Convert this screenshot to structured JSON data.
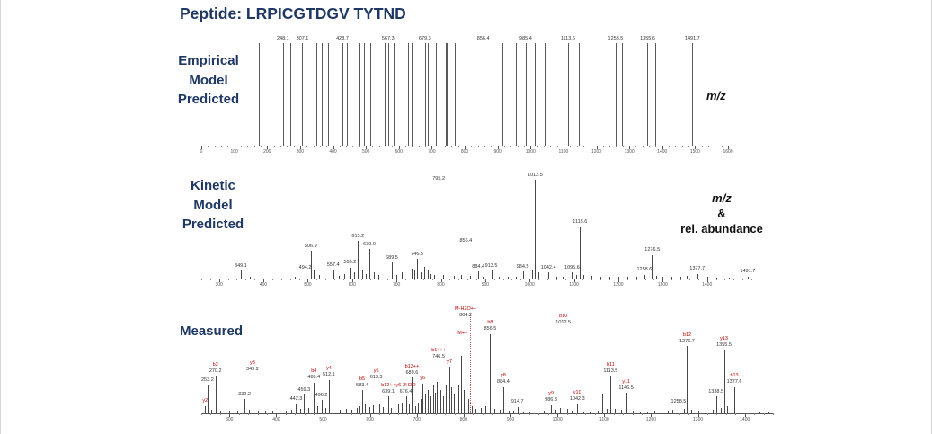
{
  "title": "Peptide: LRPICGTDGV TYTND",
  "colors": {
    "navy": "#1f3864",
    "stick": "#474747",
    "ion_red": "#c00000",
    "axis": "#555555"
  },
  "panels": [
    {
      "name": "empirical",
      "label_lines": [
        "Empirical",
        "Model",
        "Predicted"
      ],
      "annotation_lines": [
        "m/z"
      ]
    },
    {
      "name": "kinetic",
      "label_lines": [
        "Kinetic",
        "Model",
        "Predicted"
      ],
      "annotation_lines": [
        "m/z",
        "&",
        "rel. abundance"
      ]
    },
    {
      "name": "measured",
      "label_lines": [
        "Measured"
      ],
      "annotation_lines": []
    }
  ],
  "chart_data": [
    {
      "type": "bar",
      "subtype": "stick-spectrum",
      "title": "Empirical Model Predicted",
      "xlabel": "m/z",
      "ylabel": "",
      "xlim": [
        0,
        1600
      ],
      "ticks": [
        0,
        100,
        200,
        300,
        400,
        500,
        600,
        700,
        800,
        900,
        1000,
        1100,
        1200,
        1300,
        1400,
        1500,
        1600
      ],
      "uniform_intensity": 100,
      "peak_format": [
        "mz",
        "label"
      ],
      "peaks": [
        [
          175.1,
          ""
        ],
        [
          248.1,
          "248.1"
        ],
        [
          270.2,
          ""
        ],
        [
          307.1,
          "307.1"
        ],
        [
          349.2,
          ""
        ],
        [
          367.2,
          ""
        ],
        [
          385.2,
          ""
        ],
        [
          428.7,
          "428.7"
        ],
        [
          442.7,
          ""
        ],
        [
          480.3,
          ""
        ],
        [
          493.2,
          ""
        ],
        [
          512.2,
          ""
        ],
        [
          557.3,
          ""
        ],
        [
          567.3,
          "567.3"
        ],
        [
          583.3,
          ""
        ],
        [
          613.3,
          ""
        ],
        [
          628.8,
          ""
        ],
        [
          639.1,
          ""
        ],
        [
          679.3,
          "679.3"
        ],
        [
          689.3,
          ""
        ],
        [
          712.4,
          ""
        ],
        [
          741.4,
          ""
        ],
        [
          746.4,
          ""
        ],
        [
          769.3,
          ""
        ],
        [
          856.4,
          "856.4"
        ],
        [
          884.4,
          ""
        ],
        [
          913.5,
          ""
        ],
        [
          955.5,
          ""
        ],
        [
          985.4,
          "985.4"
        ],
        [
          1012.5,
          ""
        ],
        [
          1042.4,
          ""
        ],
        [
          1113.6,
          "1113.6"
        ],
        [
          1145.5,
          ""
        ],
        [
          1258.5,
          "1258.5"
        ],
        [
          1276.6,
          ""
        ],
        [
          1355.6,
          "1355.6"
        ],
        [
          1377.7,
          ""
        ],
        [
          1491.7,
          "1491.7"
        ]
      ]
    },
    {
      "type": "bar",
      "subtype": "stick-spectrum",
      "title": "Kinetic Model Predicted",
      "xlabel": "m/z",
      "ylabel": "rel. abundance",
      "xlim": [
        250,
        1510
      ],
      "ticks": [
        300,
        400,
        500,
        600,
        700,
        800,
        900,
        1000,
        1100,
        1200,
        1300,
        1400
      ],
      "peak_format": [
        "mz",
        "rel_intensity",
        "label"
      ],
      "peaks": [
        [
          349.1,
          8,
          "349.1"
        ],
        [
          370,
          2,
          ""
        ],
        [
          455,
          3,
          ""
        ],
        [
          470,
          2,
          ""
        ],
        [
          494.2,
          6,
          "494.2"
        ],
        [
          506.9,
          28,
          "506.9"
        ],
        [
          513,
          8,
          ""
        ],
        [
          525,
          4,
          ""
        ],
        [
          557.4,
          9,
          "557.4"
        ],
        [
          570,
          3,
          ""
        ],
        [
          583,
          5,
          ""
        ],
        [
          595.2,
          11,
          "595.2"
        ],
        [
          605,
          6,
          ""
        ],
        [
          613.2,
          38,
          "613.2"
        ],
        [
          622,
          8,
          ""
        ],
        [
          630,
          5,
          ""
        ],
        [
          639.0,
          30,
          "639.0"
        ],
        [
          650,
          6,
          ""
        ],
        [
          660,
          4,
          ""
        ],
        [
          676,
          5,
          ""
        ],
        [
          689.5,
          16,
          "689.5"
        ],
        [
          700,
          4,
          ""
        ],
        [
          712,
          6,
          ""
        ],
        [
          735,
          10,
          ""
        ],
        [
          741,
          8,
          ""
        ],
        [
          746.5,
          20,
          "746.5"
        ],
        [
          755,
          6,
          ""
        ],
        [
          762,
          12,
          ""
        ],
        [
          770,
          8,
          ""
        ],
        [
          777,
          5,
          ""
        ],
        [
          785,
          4,
          ""
        ],
        [
          795.2,
          96,
          "795.2"
        ],
        [
          805,
          4,
          ""
        ],
        [
          815,
          3,
          ""
        ],
        [
          830,
          3,
          ""
        ],
        [
          845,
          4,
          ""
        ],
        [
          856.4,
          33,
          "856.4"
        ],
        [
          865,
          3,
          ""
        ],
        [
          884.4,
          7,
          "884.4"
        ],
        [
          895,
          2,
          ""
        ],
        [
          913.5,
          8,
          "913.5"
        ],
        [
          930,
          2,
          ""
        ],
        [
          950,
          2,
          ""
        ],
        [
          970,
          2,
          ""
        ],
        [
          984.5,
          7,
          "984.5"
        ],
        [
          995,
          4,
          ""
        ],
        [
          1005,
          8,
          ""
        ],
        [
          1012.5,
          100,
          "1012.5"
        ],
        [
          1020,
          6,
          ""
        ],
        [
          1042.4,
          6,
          "1042.4"
        ],
        [
          1060,
          2,
          ""
        ],
        [
          1075,
          2,
          ""
        ],
        [
          1095.6,
          6,
          "1095.6"
        ],
        [
          1105,
          4,
          ""
        ],
        [
          1113.6,
          52,
          "1113.6"
        ],
        [
          1122,
          4,
          ""
        ],
        [
          1140,
          3,
          ""
        ],
        [
          1160,
          2,
          ""
        ],
        [
          1180,
          2,
          ""
        ],
        [
          1200,
          2,
          ""
        ],
        [
          1220,
          2,
          ""
        ],
        [
          1240,
          2,
          ""
        ],
        [
          1258.6,
          4,
          "1258.6"
        ],
        [
          1276.5,
          24,
          "1276.5"
        ],
        [
          1285,
          3,
          ""
        ],
        [
          1300,
          2,
          ""
        ],
        [
          1320,
          2,
          ""
        ],
        [
          1340,
          2,
          ""
        ],
        [
          1355,
          3,
          ""
        ],
        [
          1377.7,
          5,
          "1377.7"
        ],
        [
          1400,
          2,
          ""
        ],
        [
          1420,
          1,
          ""
        ],
        [
          1450,
          1,
          ""
        ],
        [
          1491.7,
          2,
          "1491.7"
        ]
      ]
    },
    {
      "type": "bar",
      "subtype": "stick-spectrum",
      "title": "Measured",
      "xlabel": "",
      "ylabel": "",
      "xlim": [
        240,
        1460
      ],
      "ticks": [
        300,
        400,
        500,
        600,
        700,
        800,
        900,
        1000,
        1100,
        1200,
        1300,
        1400
      ],
      "peak_format": [
        "mz",
        "rel_intensity",
        "label",
        "ion"
      ],
      "precursor_marker": {
        "mz": 813.2,
        "ion": "M++"
      },
      "peaks": [
        [
          248.1,
          8,
          "",
          "y2"
        ],
        [
          253.2,
          30,
          "253.2",
          ""
        ],
        [
          262,
          4,
          "",
          ""
        ],
        [
          270.2,
          40,
          "270.2",
          "b2"
        ],
        [
          281,
          3,
          "",
          ""
        ],
        [
          300,
          3,
          "",
          ""
        ],
        [
          316,
          3,
          "",
          ""
        ],
        [
          332.2,
          15,
          "332.2",
          ""
        ],
        [
          341,
          4,
          "",
          ""
        ],
        [
          349.2,
          42,
          "349.2",
          "y3"
        ],
        [
          361,
          3,
          "",
          ""
        ],
        [
          376,
          3,
          "",
          ""
        ],
        [
          391,
          3,
          "",
          ""
        ],
        [
          406,
          4,
          "",
          ""
        ],
        [
          421,
          3,
          "",
          ""
        ],
        [
          431,
          4,
          "",
          ""
        ],
        [
          442.3,
          10,
          "442.3",
          ""
        ],
        [
          451,
          5,
          "",
          ""
        ],
        [
          459.3,
          20,
          "459.3",
          ""
        ],
        [
          468,
          6,
          "",
          ""
        ],
        [
          480.4,
          33,
          "480.4",
          "b4"
        ],
        [
          488,
          8,
          "",
          ""
        ],
        [
          496.2,
          14,
          "496.2",
          ""
        ],
        [
          505,
          6,
          "",
          ""
        ],
        [
          512.1,
          36,
          "512.1",
          "y4"
        ],
        [
          521,
          4,
          "",
          ""
        ],
        [
          536,
          4,
          "",
          ""
        ],
        [
          548,
          5,
          "",
          ""
        ],
        [
          561,
          4,
          "",
          ""
        ],
        [
          571,
          6,
          "",
          ""
        ],
        [
          578,
          8,
          "",
          ""
        ],
        [
          583.4,
          25,
          "583.4",
          "b5"
        ],
        [
          590,
          10,
          "",
          ""
        ],
        [
          598,
          7,
          "",
          ""
        ],
        [
          606,
          9,
          "",
          ""
        ],
        [
          613.3,
          33,
          "613.3",
          "y5"
        ],
        [
          620,
          10,
          "",
          ""
        ],
        [
          628,
          7,
          "",
          ""
        ],
        [
          634,
          8,
          "",
          ""
        ],
        [
          639.1,
          18,
          "639.1",
          "b12++"
        ],
        [
          645,
          6,
          "",
          ""
        ],
        [
          652,
          8,
          "",
          ""
        ],
        [
          660,
          10,
          "",
          ""
        ],
        [
          668,
          12,
          "",
          ""
        ],
        [
          676.4,
          18,
          "676.4",
          "y6-2H2O"
        ],
        [
          683,
          10,
          "",
          ""
        ],
        [
          689.6,
          38,
          "689.6",
          "b13++"
        ],
        [
          696,
          8,
          "",
          ""
        ],
        [
          703,
          12,
          "",
          ""
        ],
        [
          708,
          15,
          "",
          ""
        ],
        [
          712.4,
          32,
          "",
          "y6"
        ],
        [
          718,
          20,
          "",
          ""
        ],
        [
          724,
          25,
          "",
          ""
        ],
        [
          729,
          18,
          "",
          ""
        ],
        [
          734,
          30,
          "",
          ""
        ],
        [
          738,
          22,
          "",
          ""
        ],
        [
          743,
          34,
          "",
          ""
        ],
        [
          746.5,
          55,
          "746.5",
          "b14++"
        ],
        [
          751,
          25,
          "",
          ""
        ],
        [
          756,
          18,
          "",
          ""
        ],
        [
          761,
          30,
          "",
          ""
        ],
        [
          765,
          40,
          "",
          ""
        ],
        [
          769.4,
          50,
          "",
          "y7"
        ],
        [
          774,
          28,
          "",
          ""
        ],
        [
          779,
          20,
          "",
          ""
        ],
        [
          784,
          25,
          "",
          ""
        ],
        [
          789,
          30,
          "",
          ""
        ],
        [
          795,
          62,
          "",
          ""
        ],
        [
          800,
          25,
          "",
          ""
        ],
        [
          804.2,
          100,
          "804.2",
          "M-H2O++"
        ],
        [
          809,
          15,
          "",
          ""
        ],
        [
          818,
          8,
          "",
          ""
        ],
        [
          826,
          5,
          "",
          ""
        ],
        [
          836,
          6,
          "",
          ""
        ],
        [
          846,
          8,
          "",
          ""
        ],
        [
          856.5,
          85,
          "856.5",
          "b8"
        ],
        [
          866,
          5,
          "",
          ""
        ],
        [
          876,
          4,
          "",
          ""
        ],
        [
          884.4,
          28,
          "884.4",
          "y8"
        ],
        [
          896,
          3,
          "",
          ""
        ],
        [
          906,
          3,
          "",
          ""
        ],
        [
          914.7,
          7,
          "914.7",
          ""
        ],
        [
          926,
          2,
          "",
          ""
        ],
        [
          941,
          2,
          "",
          ""
        ],
        [
          956,
          2,
          "",
          ""
        ],
        [
          971,
          3,
          "",
          ""
        ],
        [
          986.3,
          9,
          "986.3",
          "y9"
        ],
        [
          996,
          4,
          "",
          ""
        ],
        [
          1005,
          6,
          "",
          ""
        ],
        [
          1012.5,
          92,
          "1012.5",
          "b10"
        ],
        [
          1021,
          5,
          "",
          ""
        ],
        [
          1031,
          3,
          "",
          ""
        ],
        [
          1042.3,
          10,
          "1042.3",
          "y10"
        ],
        [
          1056,
          2,
          "",
          ""
        ],
        [
          1071,
          2,
          "",
          ""
        ],
        [
          1086,
          3,
          "",
          ""
        ],
        [
          1095.6,
          20,
          "",
          ""
        ],
        [
          1105,
          5,
          "",
          ""
        ],
        [
          1113.5,
          40,
          "1113.5",
          "b11"
        ],
        [
          1123,
          5,
          "",
          ""
        ],
        [
          1136,
          4,
          "",
          ""
        ],
        [
          1146.5,
          22,
          "1146.5",
          "y11"
        ],
        [
          1161,
          3,
          "",
          ""
        ],
        [
          1176,
          2,
          "",
          ""
        ],
        [
          1191,
          2,
          "",
          ""
        ],
        [
          1206,
          3,
          "",
          ""
        ],
        [
          1221,
          2,
          "",
          ""
        ],
        [
          1236,
          3,
          "",
          ""
        ],
        [
          1246,
          4,
          "",
          ""
        ],
        [
          1258.5,
          7,
          "1258.5",
          ""
        ],
        [
          1270,
          5,
          "",
          ""
        ],
        [
          1276.7,
          72,
          "1276.7",
          "b12"
        ],
        [
          1286,
          4,
          "",
          ""
        ],
        [
          1301,
          3,
          "",
          ""
        ],
        [
          1316,
          2,
          "",
          ""
        ],
        [
          1331,
          4,
          "",
          ""
        ],
        [
          1338.5,
          18,
          "1338.5",
          ""
        ],
        [
          1348,
          6,
          "",
          ""
        ],
        [
          1355.5,
          68,
          "1355.5",
          "y13"
        ],
        [
          1363,
          8,
          "",
          ""
        ],
        [
          1371,
          5,
          "",
          ""
        ],
        [
          1377.6,
          28,
          "1377.6",
          "b13"
        ],
        [
          1391,
          2,
          "",
          ""
        ],
        [
          1411,
          2,
          "",
          ""
        ],
        [
          1431,
          1,
          "",
          ""
        ],
        [
          1451,
          1,
          "",
          ""
        ]
      ]
    }
  ]
}
